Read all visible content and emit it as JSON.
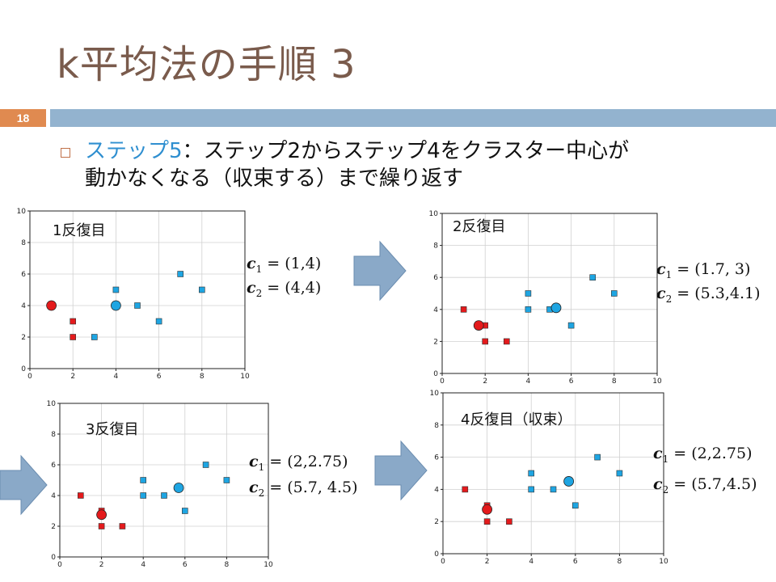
{
  "slide": {
    "title": "k平均法の手順 3",
    "number": "18",
    "bullet_highlight": "ステップ5",
    "bullet_line1_rest": "：ステップ2からステップ4をクラスター中心が",
    "bullet_line2": "動かなくなる（収束する）まで繰り返す"
  },
  "colors": {
    "title": "#7a5b4c",
    "accent_orange": "#e08a50",
    "accent_blue_bar": "#93b3cf",
    "highlight": "#2f8fd0",
    "red_cluster": "#e41a1c",
    "blue_cluster": "#1ea5e2",
    "arrow": "#8aa9c8"
  },
  "equations": [
    {
      "c1_label": "c",
      "c1_sub": "1",
      "c1_val": " = (1,4)",
      "c2_label": "c",
      "c2_sub": "2",
      "c2_val": " = (4,4)"
    },
    {
      "c1_label": "c",
      "c1_sub": "1",
      "c1_val": " = (1.7, 3)",
      "c2_label": "c",
      "c2_sub": "2",
      "c2_val": " = (5.3,4.1)"
    },
    {
      "c1_label": "c",
      "c1_sub": "1",
      "c1_val": " = (2,2.75)",
      "c2_label": "c",
      "c2_sub": "2",
      "c2_val": " = (5.7, 4.5)"
    },
    {
      "c1_label": "c",
      "c1_sub": "1",
      "c1_val": " = (2,2.75)",
      "c2_label": "c",
      "c2_sub": "2",
      "c2_val": " = (5.7,4.5)"
    }
  ],
  "chart_data": [
    {
      "type": "scatter",
      "title": "1反復目",
      "xlim": [
        0,
        10
      ],
      "ylim": [
        0,
        10
      ],
      "xticks": [
        0,
        2,
        4,
        6,
        8,
        10
      ],
      "yticks": [
        0,
        2,
        4,
        6,
        8,
        10
      ],
      "grid": true,
      "series": [
        {
          "marker": "square",
          "color": "#e41a1c",
          "points": [
            [
              2,
              3
            ],
            [
              2,
              2
            ]
          ]
        },
        {
          "marker": "square",
          "color": "#1ea5e2",
          "points": [
            [
              3,
              2
            ],
            [
              4,
              5
            ],
            [
              5,
              4
            ],
            [
              6,
              3
            ],
            [
              7,
              6
            ],
            [
              8,
              5
            ]
          ]
        }
      ],
      "centroids": [
        {
          "color": "#e41a1c",
          "x": 1,
          "y": 4
        },
        {
          "color": "#1ea5e2",
          "x": 4,
          "y": 4
        }
      ]
    },
    {
      "type": "scatter",
      "title": "2反復目",
      "xlim": [
        0,
        10
      ],
      "ylim": [
        0,
        10
      ],
      "xticks": [
        0,
        2,
        4,
        6,
        8,
        10
      ],
      "yticks": [
        0,
        2,
        4,
        6,
        8,
        10
      ],
      "grid": true,
      "series": [
        {
          "marker": "square",
          "color": "#e41a1c",
          "points": [
            [
              1,
              4
            ],
            [
              2,
              3
            ],
            [
              2,
              2
            ],
            [
              3,
              2
            ]
          ]
        },
        {
          "marker": "square",
          "color": "#1ea5e2",
          "points": [
            [
              4,
              5
            ],
            [
              4,
              4
            ],
            [
              5,
              4
            ],
            [
              6,
              3
            ],
            [
              7,
              6
            ],
            [
              8,
              5
            ]
          ]
        }
      ],
      "centroids": [
        {
          "color": "#e41a1c",
          "x": 1.7,
          "y": 3
        },
        {
          "color": "#1ea5e2",
          "x": 5.3,
          "y": 4.1
        }
      ]
    },
    {
      "type": "scatter",
      "title": "3反復目",
      "xlim": [
        0,
        10
      ],
      "ylim": [
        0,
        10
      ],
      "xticks": [
        0,
        2,
        4,
        6,
        8,
        10
      ],
      "yticks": [
        0,
        2,
        4,
        6,
        8,
        10
      ],
      "grid": true,
      "series": [
        {
          "marker": "square",
          "color": "#e41a1c",
          "points": [
            [
              1,
              4
            ],
            [
              2,
              3
            ],
            [
              2,
              2
            ],
            [
              3,
              2
            ]
          ]
        },
        {
          "marker": "square",
          "color": "#1ea5e2",
          "points": [
            [
              4,
              5
            ],
            [
              4,
              4
            ],
            [
              5,
              4
            ],
            [
              6,
              3
            ],
            [
              7,
              6
            ],
            [
              8,
              5
            ]
          ]
        }
      ],
      "centroids": [
        {
          "color": "#e41a1c",
          "x": 2,
          "y": 2.75
        },
        {
          "color": "#1ea5e2",
          "x": 5.7,
          "y": 4.5
        }
      ]
    },
    {
      "type": "scatter",
      "title": "4反復目（収束）",
      "xlim": [
        0,
        10
      ],
      "ylim": [
        0,
        10
      ],
      "xticks": [
        0,
        2,
        4,
        6,
        8,
        10
      ],
      "yticks": [
        0,
        2,
        4,
        6,
        8,
        10
      ],
      "grid": true,
      "series": [
        {
          "marker": "square",
          "color": "#e41a1c",
          "points": [
            [
              1,
              4
            ],
            [
              2,
              3
            ],
            [
              2,
              2
            ],
            [
              3,
              2
            ]
          ]
        },
        {
          "marker": "square",
          "color": "#1ea5e2",
          "points": [
            [
              4,
              5
            ],
            [
              4,
              4
            ],
            [
              5,
              4
            ],
            [
              6,
              3
            ],
            [
              7,
              6
            ],
            [
              8,
              5
            ]
          ]
        }
      ],
      "centroids": [
        {
          "color": "#e41a1c",
          "x": 2,
          "y": 2.75
        },
        {
          "color": "#1ea5e2",
          "x": 5.7,
          "y": 4.5
        }
      ]
    }
  ]
}
